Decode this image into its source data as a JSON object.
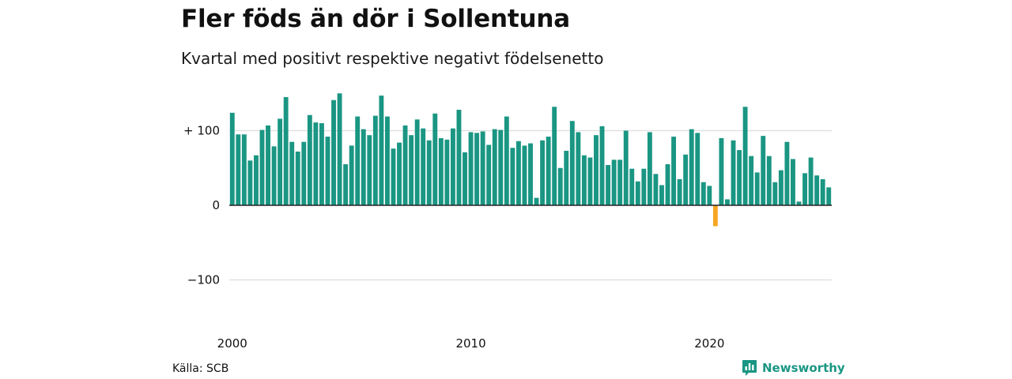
{
  "header": {
    "title": "Fler föds än dör i Sollentuna",
    "subtitle": "Kvartal med positivt respektive negativt födelsenetto"
  },
  "footer": {
    "source": "Källa: SCB",
    "brand": "Newsworthy"
  },
  "colors": {
    "positive": "#1a9683",
    "negative": "#f5a623",
    "grid": "#dddddd",
    "zero_line": "#222222",
    "brand": "#1a9683"
  },
  "chart_data": {
    "type": "bar",
    "title": "Fler föds än dör i Sollentuna",
    "subtitle": "Kvartal med positivt respektive negativt födelsenetto",
    "xlabel": "",
    "ylabel": "",
    "ylim": [
      -100,
      150
    ],
    "y_ticks": [
      {
        "value": 100,
        "label": "+ 100"
      },
      {
        "value": 0,
        "label": "0"
      },
      {
        "value": -100,
        "label": "−100"
      }
    ],
    "x_ticks": [
      {
        "year": 2000,
        "label": "2000"
      },
      {
        "year": 2010,
        "label": "2010"
      },
      {
        "year": 2020,
        "label": "2020"
      }
    ],
    "start": "2000 Q1",
    "frequency": "quarterly",
    "grid": true,
    "legend": "none",
    "values": [
      124,
      95,
      95,
      60,
      67,
      101,
      107,
      79,
      116,
      145,
      85,
      72,
      85,
      121,
      111,
      110,
      92,
      141,
      150,
      55,
      80,
      119,
      102,
      94,
      120,
      147,
      119,
      76,
      84,
      107,
      94,
      115,
      103,
      87,
      123,
      90,
      88,
      103,
      128,
      71,
      98,
      97,
      99,
      81,
      102,
      101,
      119,
      77,
      86,
      80,
      83,
      10,
      87,
      92,
      132,
      50,
      73,
      113,
      98,
      67,
      64,
      94,
      106,
      54,
      61,
      61,
      100,
      49,
      32,
      49,
      98,
      42,
      27,
      55,
      92,
      35,
      68,
      102,
      97,
      31,
      26,
      -28,
      90,
      8,
      87,
      74,
      132,
      66,
      44,
      93,
      66,
      31,
      47,
      85,
      62,
      5,
      43,
      64,
      40,
      35,
      24
    ]
  }
}
